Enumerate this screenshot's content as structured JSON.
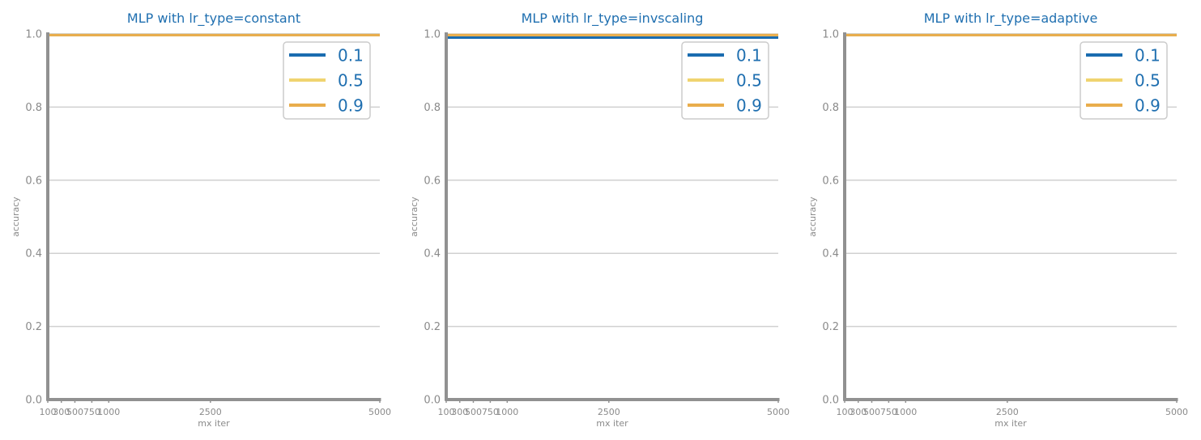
{
  "chart_data": [
    {
      "type": "line",
      "title": "MLP with lr_type=constant",
      "xlabel": "mx iter",
      "ylabel": "accuracy",
      "x": [
        100,
        300,
        500,
        750,
        1000,
        2500,
        5000
      ],
      "xticks": [
        "100",
        "300",
        "500",
        "750",
        "1000",
        "2500",
        "5000"
      ],
      "xlim": [
        100,
        5000
      ],
      "ylim": [
        0.0,
        1.0
      ],
      "yticks": [
        "0.0",
        "0.2",
        "0.4",
        "0.6",
        "0.8",
        "1.0"
      ],
      "grid": true,
      "legend_position": "top-right",
      "series": [
        {
          "name": "0.1",
          "values": [
            0.997,
            0.997,
            0.997,
            0.997,
            0.997,
            0.997,
            0.997
          ]
        },
        {
          "name": "0.5",
          "values": [
            0.997,
            0.997,
            0.997,
            0.997,
            0.997,
            0.997,
            0.997
          ]
        },
        {
          "name": "0.9",
          "values": [
            0.997,
            0.997,
            0.997,
            0.997,
            0.997,
            0.997,
            0.997
          ]
        }
      ]
    },
    {
      "type": "line",
      "title": "MLP with lr_type=invscaling",
      "xlabel": "mx iter",
      "ylabel": "accuracy",
      "x": [
        100,
        300,
        500,
        750,
        1000,
        2500,
        5000
      ],
      "xticks": [
        "100",
        "300",
        "500",
        "750",
        "1000",
        "2500",
        "5000"
      ],
      "xlim": [
        100,
        5000
      ],
      "ylim": [
        0.0,
        1.0
      ],
      "yticks": [
        "0.0",
        "0.2",
        "0.4",
        "0.6",
        "0.8",
        "1.0"
      ],
      "grid": true,
      "legend_position": "top-right",
      "series": [
        {
          "name": "0.1",
          "values": [
            0.99,
            0.99,
            0.99,
            0.99,
            0.99,
            0.99,
            0.99
          ]
        },
        {
          "name": "0.5",
          "values": [
            0.997,
            0.997,
            0.997,
            0.997,
            0.997,
            0.997,
            0.997
          ]
        },
        {
          "name": "0.9",
          "values": [
            0.997,
            0.997,
            0.997,
            0.997,
            0.997,
            0.997,
            0.997
          ]
        }
      ]
    },
    {
      "type": "line",
      "title": "MLP with lr_type=adaptive",
      "xlabel": "mx iter",
      "ylabel": "accuracy",
      "x": [
        100,
        300,
        500,
        750,
        1000,
        2500,
        5000
      ],
      "xticks": [
        "100",
        "300",
        "500",
        "750",
        "1000",
        "2500",
        "5000"
      ],
      "xlim": [
        100,
        5000
      ],
      "ylim": [
        0.0,
        1.0
      ],
      "yticks": [
        "0.0",
        "0.2",
        "0.4",
        "0.6",
        "0.8",
        "1.0"
      ],
      "grid": true,
      "legend_position": "top-right",
      "series": [
        {
          "name": "0.1",
          "values": [
            0.997,
            0.997,
            0.997,
            0.997,
            0.997,
            0.997,
            0.997
          ]
        },
        {
          "name": "0.5",
          "values": [
            0.997,
            0.997,
            0.997,
            0.997,
            0.997,
            0.997,
            0.997
          ]
        },
        {
          "name": "0.9",
          "values": [
            0.997,
            0.997,
            0.997,
            0.997,
            0.997,
            0.997,
            0.997
          ]
        }
      ]
    }
  ],
  "colors": {
    "series": [
      "#1a6cb0",
      "#f0d470",
      "#e9ad4c"
    ],
    "title": "#1f6fb0",
    "axis": "#919191",
    "grid": "#d0d0d0",
    "tick_text": "#8a8a8a",
    "legend_border": "#cccccc"
  }
}
